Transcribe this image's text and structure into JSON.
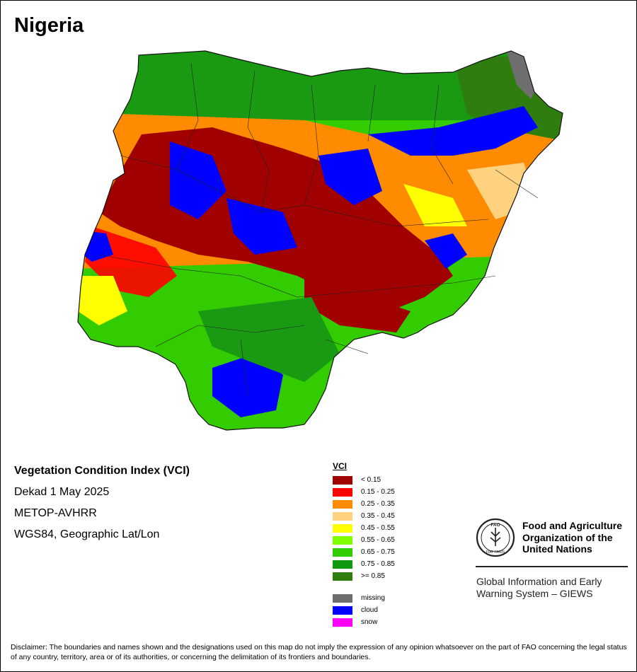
{
  "title": "Nigeria",
  "info": {
    "heading": "Vegetation Condition Index (VCI)",
    "date": "Dekad 1 May 2025",
    "sensor": "METOP-AVHRR",
    "projection": "WGS84, Geographic Lat/Lon"
  },
  "legend": {
    "title": "VCI",
    "classes": [
      {
        "label": "< 0.15",
        "color": "#a00000"
      },
      {
        "label": "0.15 - 0.25",
        "color": "#ff0000"
      },
      {
        "label": "0.25 - 0.35",
        "color": "#ff8c00"
      },
      {
        "label": "0.35 - 0.45",
        "color": "#ffd27f"
      },
      {
        "label": "0.45 - 0.55",
        "color": "#ffff00"
      },
      {
        "label": "0.55 - 0.65",
        "color": "#7fff00"
      },
      {
        "label": "0.65 - 0.75",
        "color": "#32cd00"
      },
      {
        "label": "0.75 - 0.85",
        "color": "#119911"
      },
      {
        "label": ">= 0.85",
        "color": "#2e7d0e"
      }
    ],
    "other": [
      {
        "label": "missing",
        "color": "#6e6e6e"
      },
      {
        "label": "cloud",
        "color": "#0000ff"
      },
      {
        "label": "snow",
        "color": "#ff00ff"
      }
    ]
  },
  "fao": {
    "logo_text": "FAO",
    "logo_motto": "FIAT PANIS",
    "org": "Food and Agriculture\nOrganization of the\nUnited Nations",
    "giews": "Global Information and Early\nWarning System – GIEWS"
  },
  "disclaimer": "Disclaimer: The boundaries and names shown and the designations used on this map do not imply the expression of any opinion whatsoever on the part of FAO concerning the legal status of any country, territory, area or of its authorities, or concerning the delimitation of its frontiers and boundaries."
}
